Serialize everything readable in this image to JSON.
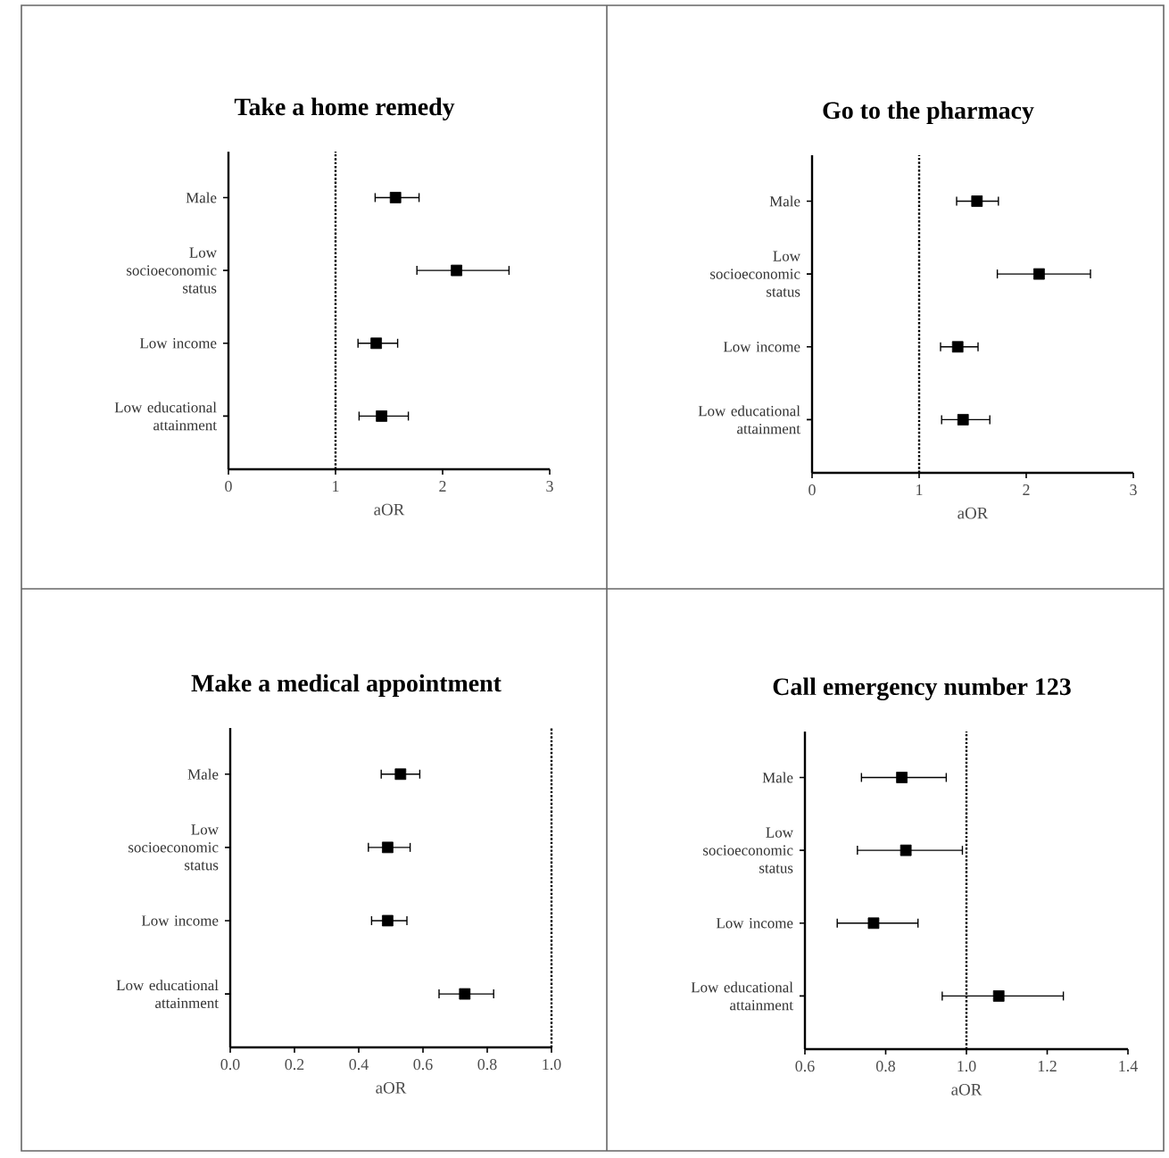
{
  "chart_data": [
    {
      "type": "scatter",
      "orientation": "horizontal",
      "title": "Take a home remedy",
      "xlabel": "aOR",
      "categories": [
        "Male",
        "Low socioeconomic status",
        "Low income",
        "Low educational attainment"
      ],
      "values": [
        1.56,
        2.13,
        1.38,
        1.43
      ],
      "errors": [
        [
          1.37,
          1.78
        ],
        [
          1.76,
          2.62
        ],
        [
          1.21,
          1.58
        ],
        [
          1.22,
          1.68
        ]
      ],
      "color": "#000000",
      "marker": "square",
      "xlim": [
        0,
        3
      ],
      "xticks": [
        0,
        1,
        2,
        3
      ],
      "ref_lines": [
        {
          "axis": "x",
          "value": 1,
          "line_style": "dotted"
        }
      ]
    },
    {
      "type": "scatter",
      "orientation": "horizontal",
      "title": "Go to the pharmacy",
      "xlabel": "aOR",
      "categories": [
        "Male",
        "Low socioeconomic status",
        "Low income",
        "Low educational attainment"
      ],
      "values": [
        1.54,
        2.12,
        1.36,
        1.41
      ],
      "errors": [
        [
          1.35,
          1.74
        ],
        [
          1.73,
          2.6
        ],
        [
          1.2,
          1.55
        ],
        [
          1.21,
          1.66
        ]
      ],
      "color": "#000000",
      "marker": "square",
      "xlim": [
        0,
        3
      ],
      "xticks": [
        0,
        1,
        2,
        3
      ],
      "ref_lines": [
        {
          "axis": "x",
          "value": 1,
          "line_style": "dotted"
        }
      ]
    },
    {
      "type": "scatter",
      "orientation": "horizontal",
      "title": "Make a medical appointment",
      "xlabel": "aOR",
      "categories": [
        "Male",
        "Low socioeconomic status",
        "Low income",
        "Low educational attainment"
      ],
      "values": [
        0.53,
        0.49,
        0.49,
        0.73
      ],
      "errors": [
        [
          0.47,
          0.59
        ],
        [
          0.43,
          0.56
        ],
        [
          0.44,
          0.55
        ],
        [
          0.65,
          0.82
        ]
      ],
      "color": "#000000",
      "marker": "square",
      "xlim": [
        0,
        1
      ],
      "xticks": [
        {
          "value": 0,
          "label": "0.0"
        },
        {
          "value": 0.2,
          "label": "0.2"
        },
        {
          "value": 0.4,
          "label": "0.4"
        },
        {
          "value": 0.6,
          "label": "0.6"
        },
        {
          "value": 0.8,
          "label": "0.8"
        },
        {
          "value": 1,
          "label": "1.0"
        }
      ],
      "ref_lines": [
        {
          "axis": "x",
          "value": 1,
          "line_style": "dotted"
        }
      ]
    },
    {
      "type": "scatter",
      "orientation": "horizontal",
      "title": "Call emergency number 123",
      "xlabel": "aOR",
      "categories": [
        "Male",
        "Low socioeconomic status",
        "Low income",
        "Low educational attainment"
      ],
      "values": [
        0.84,
        0.85,
        0.77,
        1.08
      ],
      "errors": [
        [
          0.74,
          0.95
        ],
        [
          0.73,
          0.99
        ],
        [
          0.68,
          0.88
        ],
        [
          0.94,
          1.24
        ]
      ],
      "color": "#000000",
      "marker": "square",
      "xlim": [
        0.6,
        1.4
      ],
      "xticks": [
        {
          "value": 0.6,
          "label": "0.6"
        },
        {
          "value": 0.8,
          "label": "0.8"
        },
        {
          "value": 1,
          "label": "1.0"
        },
        {
          "value": 1.2,
          "label": "1.2"
        },
        {
          "value": 1.4,
          "label": "1.4"
        }
      ],
      "ref_lines": [
        {
          "axis": "x",
          "value": 1,
          "line_style": "dotted"
        }
      ]
    }
  ]
}
